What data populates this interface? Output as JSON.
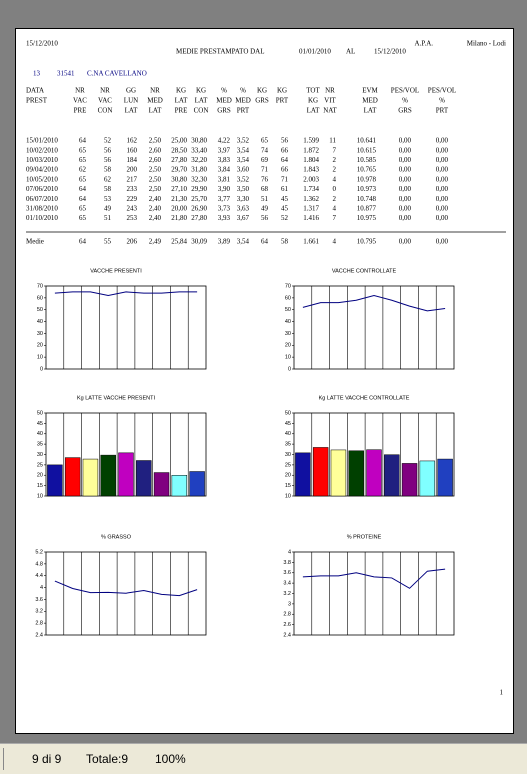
{
  "header": {
    "date": "15/12/2010",
    "org": "A.P.A.",
    "place": "Milano - Lodi",
    "title": "MEDIE PRESTAMPATO  DAL",
    "from": "01/01/2010",
    "to_label": "AL",
    "to": "15/12/2010",
    "farm_code": "13",
    "farm_id": "31541",
    "farm_name": "C.NA CAVELLANO"
  },
  "table": {
    "columns": [
      [
        "DATA",
        "PREST"
      ],
      [
        "NR",
        "VAC",
        "PRE"
      ],
      [
        "NR",
        "VAC",
        "CON"
      ],
      [
        "GG",
        "LUN",
        "LAT"
      ],
      [
        "NR",
        "MED",
        "LAT"
      ],
      [
        "KG",
        "LAT",
        "PRE"
      ],
      [
        "KG",
        "LAT",
        "CON"
      ],
      [
        "%",
        "MED",
        "GRS"
      ],
      [
        "%",
        "MED",
        "PRT"
      ],
      [
        "KG",
        "GRS"
      ],
      [
        "KG",
        "PRT"
      ],
      [
        "TOT",
        "KG",
        "LAT"
      ],
      [
        "NR",
        "VIT",
        "NAT"
      ],
      [
        "EVM",
        "MED",
        "LAT"
      ],
      [
        "PES/VOL",
        "%",
        "GRS"
      ],
      [
        "PES/VOL",
        "%",
        "PRT"
      ]
    ],
    "rows": [
      [
        "15/01/2010",
        "64",
        "52",
        "162",
        "2,50",
        "25,00",
        "30,80",
        "4,22",
        "3,52",
        "65",
        "56",
        "1.599",
        "11",
        "10.641",
        "0,00",
        "0,00"
      ],
      [
        "10/02/2010",
        "65",
        "56",
        "160",
        "2,60",
        "28,50",
        "33,40",
        "3,97",
        "3,54",
        "74",
        "66",
        "1.872",
        "7",
        "10.615",
        "0,00",
        "0,00"
      ],
      [
        "10/03/2010",
        "65",
        "56",
        "184",
        "2,60",
        "27,80",
        "32,20",
        "3,83",
        "3,54",
        "69",
        "64",
        "1.804",
        "2",
        "10.585",
        "0,00",
        "0,00"
      ],
      [
        "09/04/2010",
        "62",
        "58",
        "200",
        "2,50",
        "29,70",
        "31,80",
        "3,84",
        "3,60",
        "71",
        "66",
        "1.843",
        "2",
        "10.765",
        "0,00",
        "0,00"
      ],
      [
        "10/05/2010",
        "65",
        "62",
        "217",
        "2,50",
        "30,80",
        "32,30",
        "3,81",
        "3,52",
        "76",
        "71",
        "2.003",
        "4",
        "10.978",
        "0,00",
        "0,00"
      ],
      [
        "07/06/2010",
        "64",
        "58",
        "233",
        "2,50",
        "27,10",
        "29,90",
        "3,90",
        "3,50",
        "68",
        "61",
        "1.734",
        "0",
        "10.973",
        "0,00",
        "0,00"
      ],
      [
        "06/07/2010",
        "64",
        "53",
        "229",
        "2,40",
        "21,30",
        "25,70",
        "3,77",
        "3,30",
        "51",
        "45",
        "1.362",
        "2",
        "10.748",
        "0,00",
        "0,00"
      ],
      [
        "31/08/2010",
        "65",
        "49",
        "243",
        "2,40",
        "20,00",
        "26,90",
        "3,73",
        "3,63",
        "49",
        "45",
        "1.317",
        "4",
        "10.877",
        "0,00",
        "0,00"
      ],
      [
        "01/10/2010",
        "65",
        "51",
        "253",
        "2,40",
        "21,80",
        "27,80",
        "3,93",
        "3,67",
        "56",
        "52",
        "1.416",
        "7",
        "10.975",
        "0,00",
        "0,00"
      ]
    ],
    "footer": [
      "Medie",
      "64",
      "55",
      "206",
      "2,49",
      "25,84",
      "30,09",
      "3,89",
      "3,54",
      "64",
      "58",
      "1.661",
      "4",
      "10.795",
      "0,00",
      "0,00"
    ]
  },
  "chart_data": [
    {
      "type": "line",
      "title": "VACCHE PRESENTI",
      "values": [
        64,
        65,
        65,
        62,
        65,
        64,
        64,
        65,
        65
      ],
      "color": "#000080",
      "ylim": [
        0,
        70
      ],
      "yticks": [
        0,
        10,
        20,
        30,
        40,
        50,
        60,
        70
      ]
    },
    {
      "type": "line",
      "title": "VACCHE CONTROLLATE",
      "values": [
        52,
        56,
        56,
        58,
        62,
        58,
        53,
        49,
        51
      ],
      "color": "#000080",
      "ylim": [
        0,
        70
      ],
      "yticks": [
        0,
        10,
        20,
        30,
        40,
        50,
        60,
        70
      ]
    },
    {
      "type": "bar",
      "title": "Kg LATTE VACCHE PRESENTI",
      "values": [
        25,
        28.5,
        27.8,
        29.7,
        30.8,
        27.1,
        21.3,
        20,
        21.8
      ],
      "colors": [
        "#1010a0",
        "#ff0000",
        "#ffff99",
        "#004000",
        "#c000c0",
        "#202080",
        "#800080",
        "#80ffff",
        "#2040c0"
      ],
      "ylim": [
        10,
        50
      ],
      "yticks": [
        10,
        15,
        20,
        25,
        30,
        35,
        40,
        45,
        50
      ]
    },
    {
      "type": "bar",
      "title": "Kg LATTE VACCHE CONTROLLATE",
      "values": [
        30.8,
        33.4,
        32.2,
        31.8,
        32.3,
        29.9,
        25.7,
        26.9,
        27.8
      ],
      "colors": [
        "#1010a0",
        "#ff0000",
        "#ffff99",
        "#004000",
        "#c000c0",
        "#202080",
        "#800080",
        "#80ffff",
        "#2040c0"
      ],
      "ylim": [
        10,
        50
      ],
      "yticks": [
        10,
        15,
        20,
        25,
        30,
        35,
        40,
        45,
        50
      ]
    },
    {
      "type": "line",
      "title": "% GRASSO",
      "values": [
        4.22,
        3.97,
        3.83,
        3.84,
        3.81,
        3.9,
        3.77,
        3.73,
        3.93
      ],
      "color": "#000080",
      "ylim": [
        2.4,
        5.2
      ],
      "yticks": [
        2.4,
        2.8,
        3.2,
        3.6,
        4,
        4.4,
        4.8,
        5.2
      ]
    },
    {
      "type": "line",
      "title": "% PROTEINE",
      "values": [
        3.52,
        3.54,
        3.54,
        3.6,
        3.52,
        3.5,
        3.3,
        3.63,
        3.67
      ],
      "color": "#000080",
      "ylim": [
        2.4,
        4
      ],
      "yticks": [
        2.4,
        2.6,
        2.8,
        3,
        3.2,
        3.4,
        3.6,
        3.8,
        4
      ]
    }
  ],
  "page_number": "1",
  "status": {
    "pages": "9 di 9",
    "total": "Totale:9",
    "zoom": "100%"
  }
}
